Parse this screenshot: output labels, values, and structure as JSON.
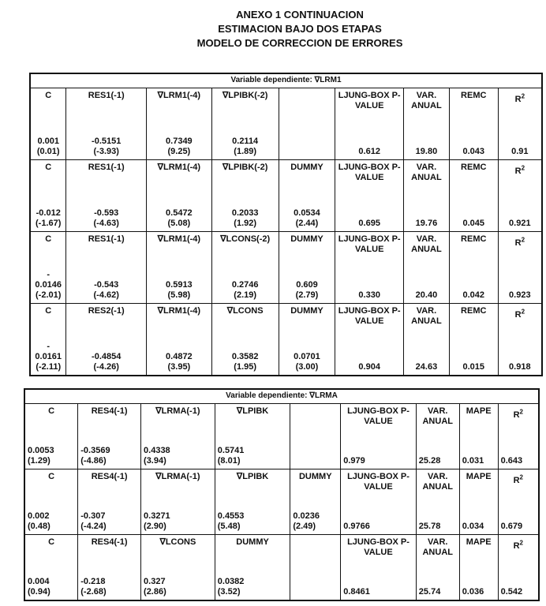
{
  "header": {
    "line1": "ANEXO 1  CONTINUACION",
    "line2": "ESTIMACION BAJO DOS ETAPAS",
    "line3": "MODELO DE CORRECCION DE ERRORES"
  },
  "tables": [
    {
      "title": "Variable dependiente: ∇LRM1",
      "models": [
        {
          "cells": [
            {
              "label": "C",
              "coef": "0.001",
              "t": "(0.01)"
            },
            {
              "label": "RES1(-1)",
              "coef": "-0.5151",
              "t": "(-3.93)"
            },
            {
              "label": "∇LRM1(-4)",
              "coef": "0.7349",
              "t": "(9.25)"
            },
            {
              "label": "∇LPIBK(-2)",
              "coef": "0.2114",
              "t": "(1.89)"
            },
            {
              "label": "",
              "coef": "",
              "t": ""
            },
            {
              "label": "LJUNG-BOX P-VALUE",
              "coef": "0.612",
              "t": ""
            },
            {
              "label": "VAR. ANUAL",
              "coef": "19.80",
              "t": ""
            },
            {
              "label": "REMC",
              "coef": "0.043",
              "t": ""
            },
            {
              "label": "R2",
              "coef": "0.91",
              "t": ""
            }
          ]
        },
        {
          "cells": [
            {
              "label": "C",
              "coef": "-0.012",
              "t": "(-1.67)"
            },
            {
              "label": "RES1(-1)",
              "coef": "-0.593",
              "t": "(-4.63)"
            },
            {
              "label": "∇LRM1(-4)",
              "coef": "0.5472",
              "t": "(5.08)"
            },
            {
              "label": "∇LPIBK(-2)",
              "coef": "0.2033",
              "t": "(1.92)"
            },
            {
              "label": "DUMMY",
              "coef": "0.0534",
              "t": "(2.44)"
            },
            {
              "label": "LJUNG-BOX P-VALUE",
              "coef": "0.695",
              "t": ""
            },
            {
              "label": "VAR. ANUAL",
              "coef": "19.76",
              "t": ""
            },
            {
              "label": "REMC",
              "coef": "0.045",
              "t": ""
            },
            {
              "label": "R2",
              "coef": "0.921",
              "t": ""
            }
          ]
        },
        {
          "cells": [
            {
              "label": "C",
              "coef": "- 0.0146",
              "t": "(-2.01)"
            },
            {
              "label": "RES1(-1)",
              "coef": "-0.543",
              "t": "(-4.62)"
            },
            {
              "label": "∇LRM1(-4)",
              "coef": "0.5913",
              "t": "(5.98)"
            },
            {
              "label": "∇LCONS(-2)",
              "coef": "0.2746",
              "t": "(2.19)"
            },
            {
              "label": "DUMMY",
              "coef": "0.609",
              "t": "(2.79)"
            },
            {
              "label": "LJUNG-BOX P-VALUE",
              "coef": "0.330",
              "t": ""
            },
            {
              "label": "VAR. ANUAL",
              "coef": "20.40",
              "t": ""
            },
            {
              "label": "REMC",
              "coef": "0.042",
              "t": ""
            },
            {
              "label": "R2",
              "coef": "0.923",
              "t": ""
            }
          ]
        },
        {
          "cells": [
            {
              "label": "C",
              "coef": "- 0.0161",
              "t": "(-2.11)"
            },
            {
              "label": "RES2(-1)",
              "coef": "-0.4854",
              "t": "(-4.26)"
            },
            {
              "label": "∇LRM1(-4)",
              "coef": "0.4872",
              "t": "(3.95)"
            },
            {
              "label": "∇LCONS",
              "coef": "0.3582",
              "t": "(1.95)"
            },
            {
              "label": "DUMMY",
              "coef": "0.0701",
              "t": "(3.00)"
            },
            {
              "label": "LJUNG-BOX P-VALUE",
              "coef": "0.904",
              "t": ""
            },
            {
              "label": "VAR. ANUAL",
              "coef": "24.63",
              "t": ""
            },
            {
              "label": "REMC",
              "coef": "0.015",
              "t": ""
            },
            {
              "label": "R2",
              "coef": "0.918",
              "t": ""
            }
          ]
        }
      ]
    },
    {
      "title": "Variable dependiente: ∇LRMA",
      "models": [
        {
          "cells": [
            {
              "label": "C",
              "coef": "0.0053",
              "t": "(1.29)"
            },
            {
              "label": "RES4(-1)",
              "coef": "-0.3569",
              "t": "(-4.86)"
            },
            {
              "label": "∇LRMA(-1)",
              "coef": "0.4338",
              "t": "(3.94)"
            },
            {
              "label": "∇LPIBK",
              "coef": "0.5741",
              "t": "(8.01)"
            },
            {
              "label": "",
              "coef": "",
              "t": ""
            },
            {
              "label": "LJUNG-BOX P-VALUE",
              "coef": "0.979",
              "t": ""
            },
            {
              "label": "VAR. ANUAL",
              "coef": "25.28",
              "t": ""
            },
            {
              "label": "MAPE",
              "coef": "0.031",
              "t": ""
            },
            {
              "label": "R2",
              "coef": "0.643",
              "t": ""
            }
          ]
        },
        {
          "cells": [
            {
              "label": "C",
              "coef": "0.002",
              "t": "(0.48)"
            },
            {
              "label": "RES4(-1)",
              "coef": "-0.307",
              "t": "(-4.24)"
            },
            {
              "label": "∇LRMA(-1)",
              "coef": "0.3271",
              "t": "(2.90)"
            },
            {
              "label": "∇LPIBK",
              "coef": "0.4553",
              "t": "(5.48)"
            },
            {
              "label": "DUMMY",
              "coef": "0.0236",
              "t": "(2.49)"
            },
            {
              "label": "LJUNG-BOX P-VALUE",
              "coef": "0.9766",
              "t": ""
            },
            {
              "label": "VAR. ANUAL",
              "coef": "25.78",
              "t": ""
            },
            {
              "label": "MAPE",
              "coef": "0.034",
              "t": ""
            },
            {
              "label": "R2",
              "coef": "0.679",
              "t": ""
            }
          ]
        },
        {
          "cells": [
            {
              "label": "C",
              "coef": "0.004",
              "t": "(0.94)"
            },
            {
              "label": "RES4(-1)",
              "coef": "-0.218",
              "t": "(-2.68)"
            },
            {
              "label": "∇LCONS",
              "coef": "0.327",
              "t": "(2.86)"
            },
            {
              "label": "DUMMY",
              "coef": "0.0382",
              "t": "(3.52)"
            },
            {
              "label": "",
              "coef": "",
              "t": ""
            },
            {
              "label": "LJUNG-BOX P-VALUE",
              "coef": "0.8461",
              "t": ""
            },
            {
              "label": "VAR. ANUAL",
              "coef": "25.74",
              "t": ""
            },
            {
              "label": "MAPE",
              "coef": "0.036",
              "t": ""
            },
            {
              "label": "R2",
              "coef": "0.542",
              "t": ""
            }
          ]
        }
      ]
    }
  ]
}
